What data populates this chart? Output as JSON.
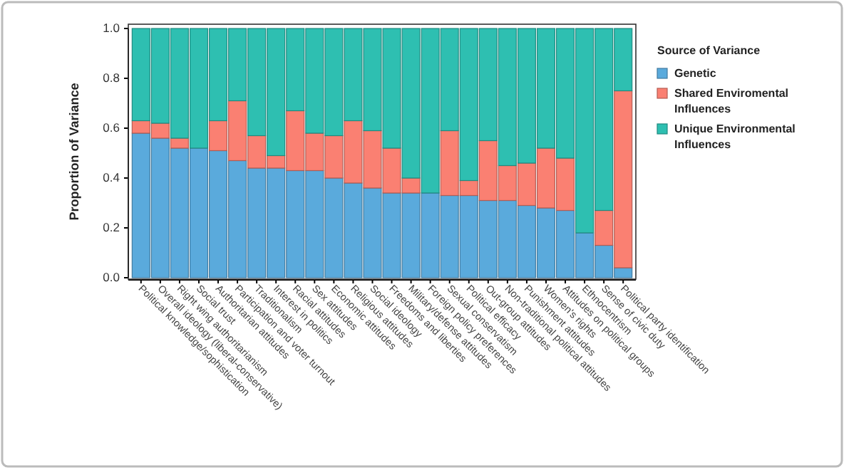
{
  "chart_data": {
    "type": "bar",
    "stacked": true,
    "ylabel": "Proportion of Variance",
    "legend_title": "Source of Variance",
    "legend": "right",
    "categories": [
      "Political knowledge/sophistication",
      "Overall ideology (liberal-conservative)",
      "Right wing authoritarianism",
      "Social trust",
      "Authoritarian attitudes",
      "Participation and voter turnout",
      "Traditionalism",
      "Interest in politics",
      "Racial attitudes",
      "Sex attitudes",
      "Economic attitudes",
      "Religious attitudes",
      "Social ideology",
      "Freedoms and liberties",
      "Military/defense attitudes",
      "Foreign policy preferences",
      "Sexual conservatism",
      "Political efficacy",
      "Out-group attitudes",
      "Non-traditional political attitudes",
      "Punishment attitudes",
      "Women's rights",
      "Attitudes on political groups",
      "Ethnocentrism",
      "Sense of civic duty",
      "Political party identification"
    ],
    "series": [
      {
        "name": "Genetic",
        "color": "#5aaadc",
        "values": [
          0.58,
          0.56,
          0.52,
          0.52,
          0.51,
          0.47,
          0.44,
          0.44,
          0.43,
          0.43,
          0.4,
          0.38,
          0.36,
          0.34,
          0.34,
          0.34,
          0.33,
          0.33,
          0.31,
          0.31,
          0.29,
          0.28,
          0.27,
          0.18,
          0.13,
          0.04
        ]
      },
      {
        "name": "Shared Enviromental Influences",
        "color": "#fa8072",
        "values": [
          0.05,
          0.06,
          0.04,
          0.0,
          0.12,
          0.24,
          0.13,
          0.05,
          0.24,
          0.15,
          0.17,
          0.25,
          0.23,
          0.18,
          0.06,
          0.0,
          0.26,
          0.06,
          0.24,
          0.14,
          0.17,
          0.24,
          0.21,
          0.0,
          0.14,
          0.71
        ]
      },
      {
        "name": "Unique Environmental Influences",
        "color": "#2ebfb1",
        "values": [
          0.37,
          0.38,
          0.44,
          0.48,
          0.37,
          0.29,
          0.43,
          0.51,
          0.33,
          0.42,
          0.43,
          0.37,
          0.41,
          0.48,
          0.6,
          0.66,
          0.41,
          0.61,
          0.45,
          0.55,
          0.54,
          0.48,
          0.52,
          0.82,
          0.73,
          0.25
        ]
      }
    ],
    "ylim": [
      0,
      1
    ],
    "yticks": [
      {
        "value": 0,
        "label": "0.0"
      },
      {
        "value": 0.2,
        "label": "0.2"
      },
      {
        "value": 0.4,
        "label": "0.4"
      },
      {
        "value": 0.6,
        "label": "0.6"
      },
      {
        "value": 0.8,
        "label": "0.8"
      },
      {
        "value": 1,
        "label": "1.0"
      }
    ],
    "grid": false
  }
}
